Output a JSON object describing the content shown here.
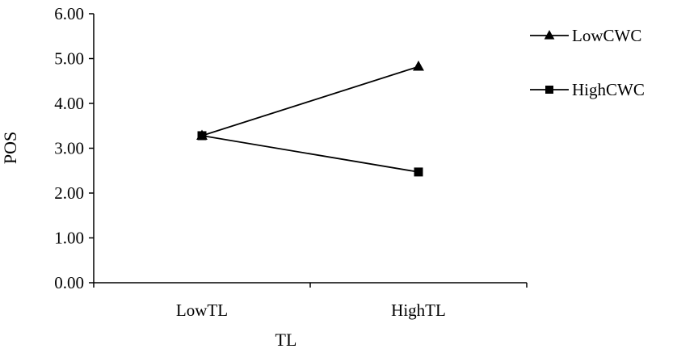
{
  "chart_data": {
    "type": "line",
    "categories": [
      "LowTL",
      "HighTL"
    ],
    "series": [
      {
        "name": "LowCWC",
        "values": [
          3.28,
          4.82
        ],
        "marker": "triangle"
      },
      {
        "name": "HighCWC",
        "values": [
          3.28,
          2.47
        ],
        "marker": "square"
      }
    ],
    "xlabel": "TL",
    "ylabel": "POS",
    "ylim": [
      0,
      6
    ],
    "yticks": [
      "0.00",
      "1.00",
      "2.00",
      "3.00",
      "4.00",
      "5.00",
      "6.00"
    ],
    "grid": false,
    "legend_position": "right",
    "line_color": "#000000"
  }
}
